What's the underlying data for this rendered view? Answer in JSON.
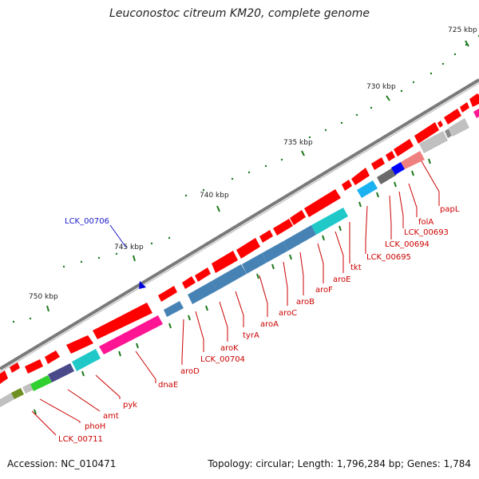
{
  "title": "Leuconostoc citreum KM20, complete genome",
  "footer": {
    "accession": "Accession: NC_010471",
    "stats": "Topology: circular; Length: 1,796,284 bp; Genes: 1,784"
  },
  "scale": {
    "ticks": [
      "725 kbp",
      "730 kbp",
      "735 kbp",
      "740 kbp",
      "745 kbp",
      "750 kbp"
    ]
  },
  "genes": {
    "labels": [
      "papL",
      "folA",
      "LCK_00693",
      "LCK_00694",
      "LCK_00695",
      "tkt",
      "aroE",
      "aroF",
      "aroB",
      "aroC",
      "aroA",
      "tyrA",
      "LCK_00704",
      "aroK",
      "aroD",
      "dnaE",
      "pyk",
      "amt",
      "phoH",
      "LCK_00711"
    ],
    "reverse_strand_label": "LCK_00706"
  },
  "colors": {
    "forward_gene": "#ff0000",
    "backbone": "#7a7a7a",
    "label_red": "#cc0000",
    "label_blue": "#1a1acc"
  }
}
